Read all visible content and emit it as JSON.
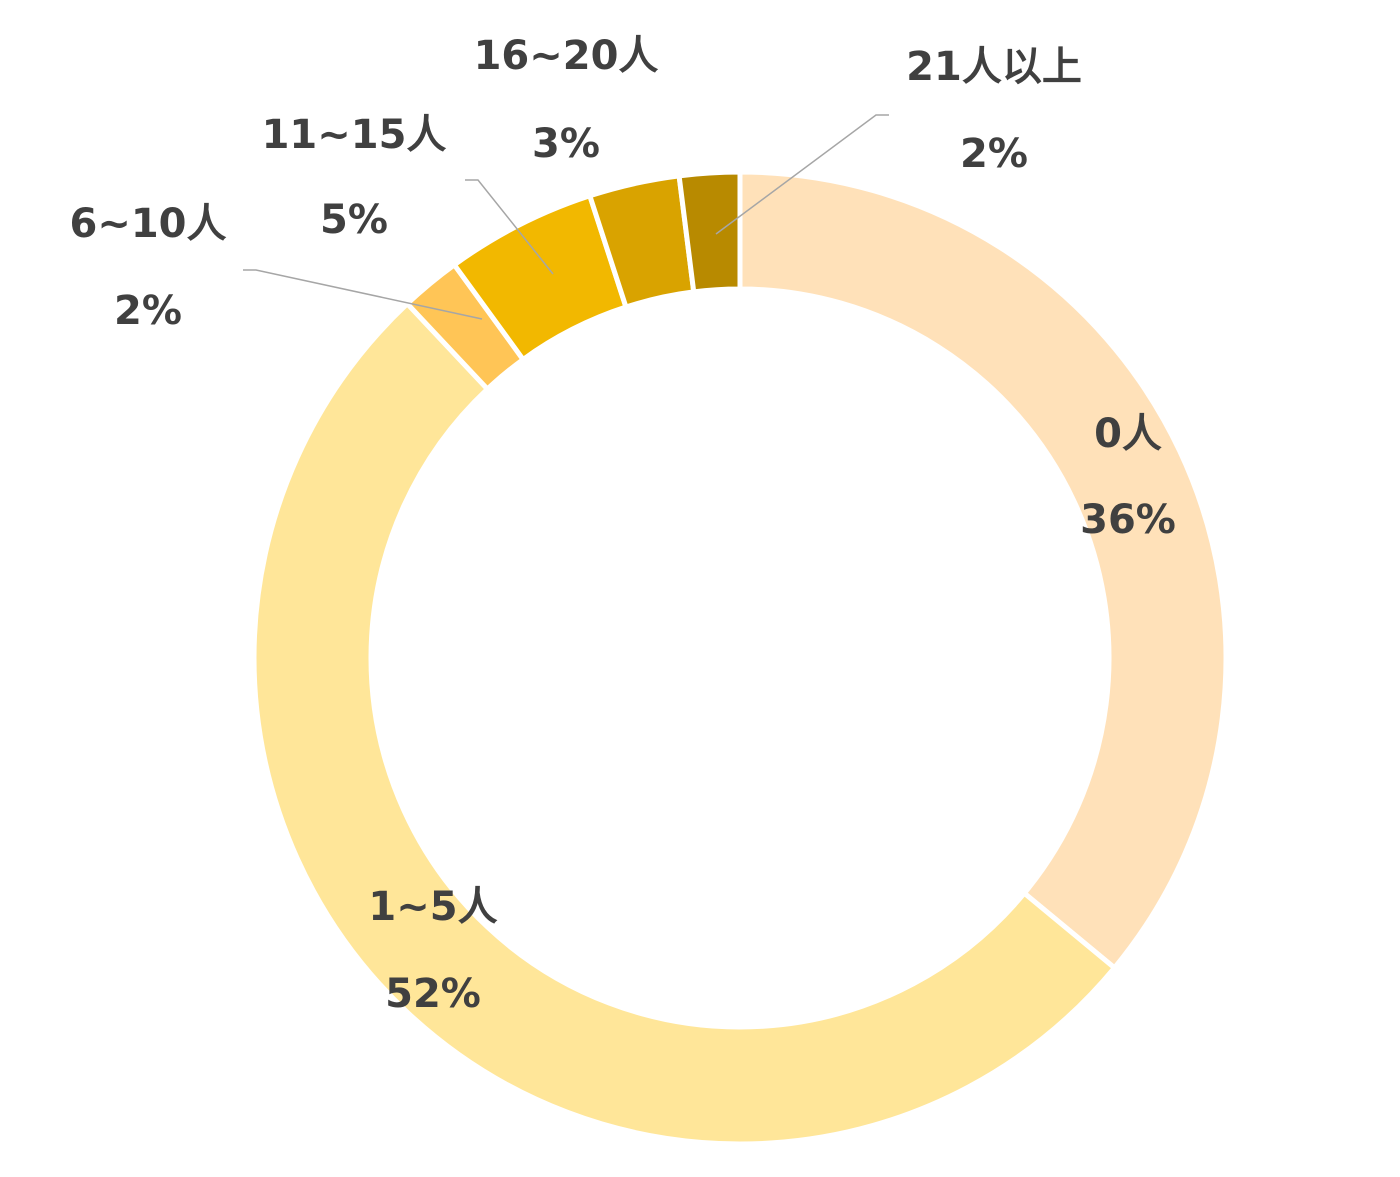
{
  "chart_data": {
    "type": "pie",
    "variant": "donut",
    "start_angle_deg": 0,
    "direction": "clockwise",
    "slices": [
      {
        "category": "0人",
        "percent_label": "36%",
        "value": 36,
        "color": "#FFE1B9"
      },
      {
        "category": "1~5人",
        "percent_label": "52%",
        "value": 52,
        "color": "#FFE699"
      },
      {
        "category": "6~10人",
        "percent_label": "2%",
        "value": 2,
        "color": "#FFC556"
      },
      {
        "category": "11~15人",
        "percent_label": "5%",
        "value": 5,
        "color": "#F2B800"
      },
      {
        "category": "16~20人",
        "percent_label": "3%",
        "value": 3,
        "color": "#D9A300"
      },
      {
        "category": "21人以上",
        "percent_label": "2%",
        "value": 2,
        "color": "#B88A00"
      }
    ],
    "legend": "none"
  }
}
